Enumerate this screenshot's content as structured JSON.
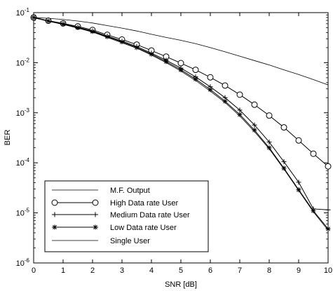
{
  "chart_data": {
    "type": "line",
    "title": "",
    "xlabel": "SNR [dB]",
    "ylabel": "BER",
    "xlim": [
      0,
      10
    ],
    "ylim": [
      1e-06,
      0.1
    ],
    "yscale": "log",
    "grid": false,
    "legend_position": "bottom-left",
    "x_ticks": [
      "0",
      "1",
      "2",
      "3",
      "4",
      "5",
      "6",
      "7",
      "8",
      "9",
      "10"
    ],
    "y_ticks": [
      {
        "base": "10",
        "exp": "-1",
        "value": 0.1
      },
      {
        "base": "10",
        "exp": "-2",
        "value": 0.01
      },
      {
        "base": "10",
        "exp": "-3",
        "value": 0.001
      },
      {
        "base": "10",
        "exp": "-4",
        "value": 0.0001
      },
      {
        "base": "10",
        "exp": "-5",
        "value": 1e-05
      },
      {
        "base": "10",
        "exp": "-6",
        "value": 1e-06
      }
    ],
    "series": [
      {
        "name": "M.F. Output",
        "marker": "none",
        "x": [
          0,
          0.5,
          1,
          1.5,
          2,
          2.5,
          3,
          3.5,
          4,
          4.5,
          5,
          5.5,
          6,
          6.5,
          7,
          7.5,
          8,
          8.5,
          9,
          9.5,
          10
        ],
        "y": [
          0.08,
          0.077,
          0.073,
          0.068,
          0.062,
          0.055,
          0.049,
          0.043,
          0.037,
          0.032,
          0.028,
          0.024,
          0.02,
          0.0165,
          0.0135,
          0.011,
          0.009,
          0.0072,
          0.0058,
          0.0046,
          0.0036
        ]
      },
      {
        "name": "High Data rate User",
        "marker": "circle",
        "x": [
          0,
          0.5,
          1,
          1.5,
          2,
          2.5,
          3,
          3.5,
          4,
          4.5,
          5,
          5.5,
          6,
          6.5,
          7,
          7.5,
          8,
          8.5,
          9,
          9.5,
          10
        ],
        "y": [
          0.08,
          0.069,
          0.061,
          0.053,
          0.045,
          0.036,
          0.029,
          0.023,
          0.0175,
          0.0132,
          0.0098,
          0.0072,
          0.0051,
          0.0035,
          0.0023,
          0.00145,
          0.00088,
          0.00051,
          0.00028,
          0.000152,
          8.5e-05
        ]
      },
      {
        "name": "Medium Data rate User",
        "marker": "plus",
        "x": [
          0,
          0.5,
          1,
          1.5,
          2,
          2.5,
          3,
          3.5,
          4,
          4.5,
          5,
          5.5,
          6,
          6.5,
          7,
          7.5,
          8,
          8.5,
          9,
          9.5,
          10
        ],
        "y": [
          0.08,
          0.068,
          0.06,
          0.051,
          0.043,
          0.034,
          0.027,
          0.021,
          0.0155,
          0.0112,
          0.0078,
          0.0052,
          0.0033,
          0.002,
          0.00113,
          0.00057,
          0.00026,
          0.000105,
          4.1e-05,
          1.2e-05,
          1.15e-05
        ]
      },
      {
        "name": "Low Data rate User",
        "marker": "star",
        "x": [
          0,
          0.5,
          1,
          1.5,
          2,
          2.5,
          3,
          3.5,
          4,
          4.5,
          5,
          5.5,
          6,
          6.5,
          7,
          7.5,
          8,
          8.5,
          9,
          9.5,
          10
        ],
        "y": [
          0.08,
          0.068,
          0.059,
          0.05,
          0.042,
          0.033,
          0.026,
          0.02,
          0.0148,
          0.0105,
          0.0072,
          0.0047,
          0.0029,
          0.0017,
          0.00092,
          0.00045,
          0.0002,
          7.8e-05,
          2.9e-05,
          1.1e-05,
          4.8e-06
        ]
      },
      {
        "name": "Single User",
        "marker": "none",
        "x": [
          0,
          0.5,
          1,
          1.5,
          2,
          2.5,
          3,
          3.5,
          4,
          4.5,
          5,
          5.5,
          6,
          6.5,
          7,
          7.5,
          8,
          8.5,
          9,
          9.5,
          10
        ],
        "y": [
          0.079,
          0.067,
          0.058,
          0.049,
          0.041,
          0.032,
          0.025,
          0.0195,
          0.0142,
          0.01,
          0.0068,
          0.0044,
          0.0027,
          0.0016,
          0.00086,
          0.00042,
          0.00019,
          7.5e-05,
          2.8e-05,
          1.05e-05,
          4.5e-06
        ]
      }
    ]
  }
}
